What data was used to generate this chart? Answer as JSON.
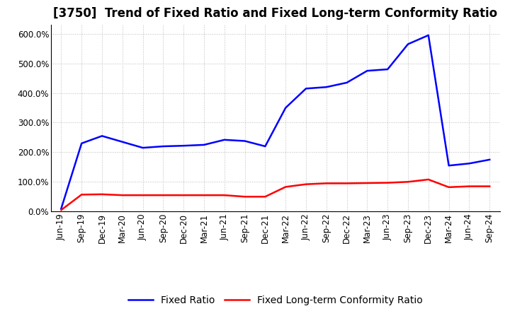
{
  "title": "[3750]  Trend of Fixed Ratio and Fixed Long-term Conformity Ratio",
  "x_labels": [
    "Jun-19",
    "Sep-19",
    "Dec-19",
    "Mar-20",
    "Jun-20",
    "Sep-20",
    "Dec-20",
    "Mar-21",
    "Jun-21",
    "Sep-21",
    "Dec-21",
    "Mar-22",
    "Jun-22",
    "Sep-22",
    "Dec-22",
    "Mar-23",
    "Jun-23",
    "Sep-23",
    "Dec-23",
    "Mar-24",
    "Jun-24",
    "Sep-24"
  ],
  "fixed_ratio": [
    10.0,
    230.0,
    255.0,
    235.0,
    215.0,
    220.0,
    222.0,
    225.0,
    242.0,
    238.0,
    220.0,
    350.0,
    415.0,
    420.0,
    435.0,
    475.0,
    480.0,
    565.0,
    595.0,
    155.0,
    162.0,
    175.0
  ],
  "fixed_lt_ratio": [
    5.0,
    57.0,
    58.0,
    55.0,
    55.0,
    55.0,
    55.0,
    55.0,
    55.0,
    50.0,
    50.0,
    83.0,
    92.0,
    95.0,
    95.0,
    96.0,
    97.0,
    100.0,
    108.0,
    82.0,
    85.0,
    85.0
  ],
  "fixed_ratio_color": "#0000ff",
  "fixed_lt_ratio_color": "#ff0000",
  "ylim": [
    0,
    630
  ],
  "yticks": [
    0,
    100,
    200,
    300,
    400,
    500,
    600
  ],
  "background_color": "#ffffff",
  "plot_bg_color": "#ffffff",
  "grid_color": "#bbbbbb",
  "legend_fixed_ratio": "Fixed Ratio",
  "legend_fixed_lt_ratio": "Fixed Long-term Conformity Ratio",
  "title_fontsize": 12,
  "axis_fontsize": 8.5,
  "legend_fontsize": 10,
  "line_width": 1.8
}
